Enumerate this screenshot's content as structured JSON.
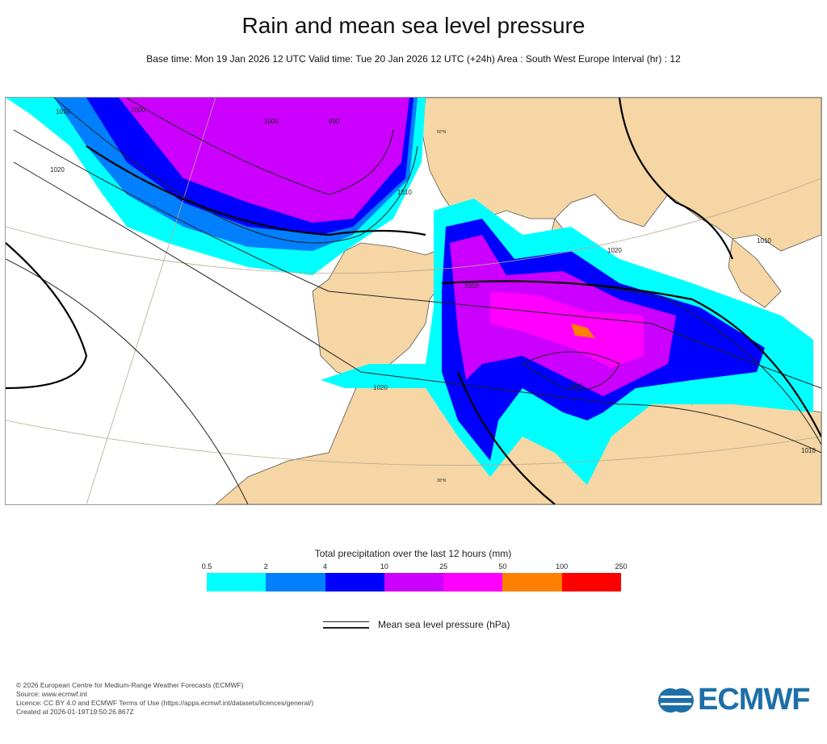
{
  "header": {
    "title": "Rain and mean sea level pressure",
    "subtitle": "Base time: Mon 19 Jan 2026 12 UTC Valid time: Tue 20 Jan 2026 12 UTC (+24h) Area : South West Europe Interval (hr) : 12"
  },
  "map": {
    "colors": {
      "sea": "#ffffff",
      "land": "#f5d6a4",
      "coast": "#555555",
      "isobar": "#222222"
    },
    "isobar_labels": [
      "1010",
      "1000",
      "1000",
      "990",
      "1020",
      "1010",
      "1010",
      "1020",
      "1020",
      "1000",
      "1010",
      "1010"
    ],
    "lat_labels": [
      "50°N",
      "30°N"
    ]
  },
  "legend": {
    "title": "Total precipitation over the last 12 hours (mm)",
    "ticks": [
      "0.5",
      "2",
      "4",
      "10",
      "25",
      "50",
      "100",
      "250"
    ],
    "colors": [
      "#00ffff",
      "#0080ff",
      "#0000ff",
      "#cc00ff",
      "#ff00ff",
      "#ff8000",
      "#ff0000"
    ],
    "msl_label": "Mean sea level pressure (hPa)"
  },
  "footer": {
    "lines": [
      "© 2026 European Centre for Medium-Range Weather Forecasts (ECMWF)",
      "Source: www.ecmwf.int",
      "Licence: CC BY 4.0 and ECMWF Terms of Use (https://apps.ecmwf.int/datasets/licences/general/)",
      "Created at 2026-01-19T19:50:26.867Z"
    ],
    "logo_text": "ECMWF"
  }
}
